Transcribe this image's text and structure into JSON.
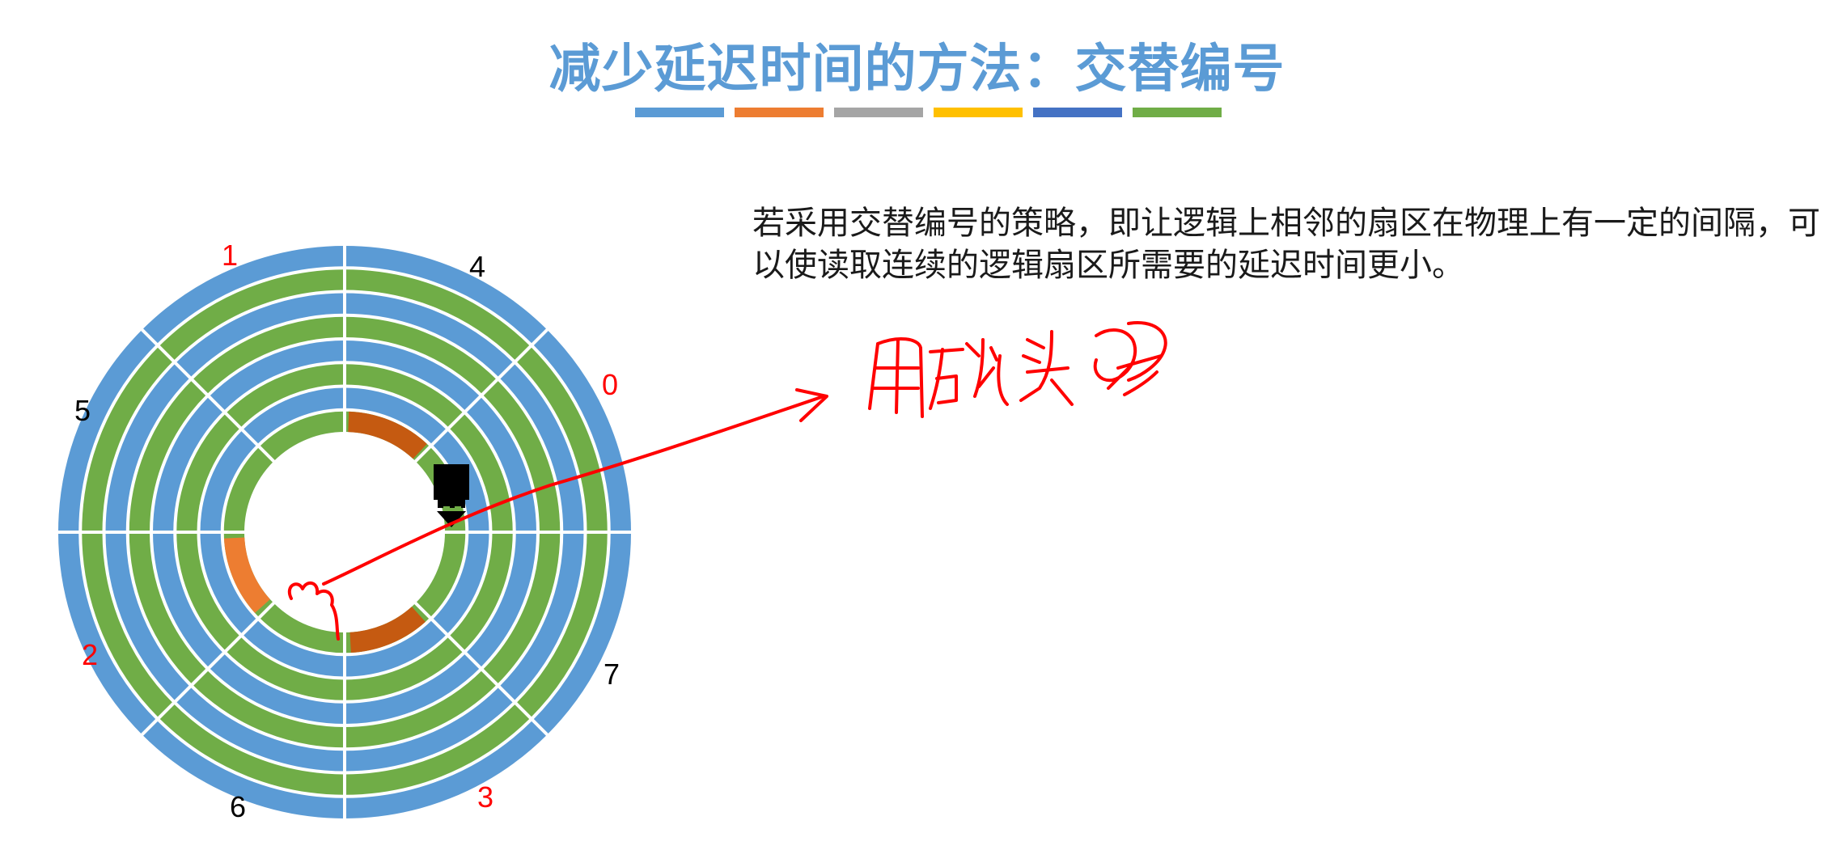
{
  "slide": {
    "title": "减少延迟时间的方法：交替编号",
    "title_bar_colors": [
      "#5b9bd5",
      "#ed7d31",
      "#a5a5a5",
      "#ffc000",
      "#4472c4",
      "#70ad47"
    ]
  },
  "description": "若采用交替编号的策略，即让逻辑上相邻的扇区在物理上有一定的间隔，可以使读取连续的逻辑扇区所需要的延迟时间更小。",
  "diagram": {
    "ring_colors": [
      "#5b9bd5",
      "#70ad47"
    ],
    "highlight_color": "#c55a11",
    "highlight_color_light": "#ed7d31",
    "sector_labels": [
      {
        "text": "0",
        "color": "#ff0000"
      },
      {
        "text": "1",
        "color": "#ff0000"
      },
      {
        "text": "2",
        "color": "#ff0000"
      },
      {
        "text": "3",
        "color": "#ff0000"
      },
      {
        "text": "4",
        "color": "#000000"
      },
      {
        "text": "5",
        "color": "#000000"
      },
      {
        "text": "6",
        "color": "#000000"
      },
      {
        "text": "7",
        "color": "#000000"
      }
    ],
    "disk_head_icon": "disk-head-icon"
  },
  "annotation": {
    "ink_color": "#ff0000",
    "handwriting_note": "用磁头读"
  }
}
